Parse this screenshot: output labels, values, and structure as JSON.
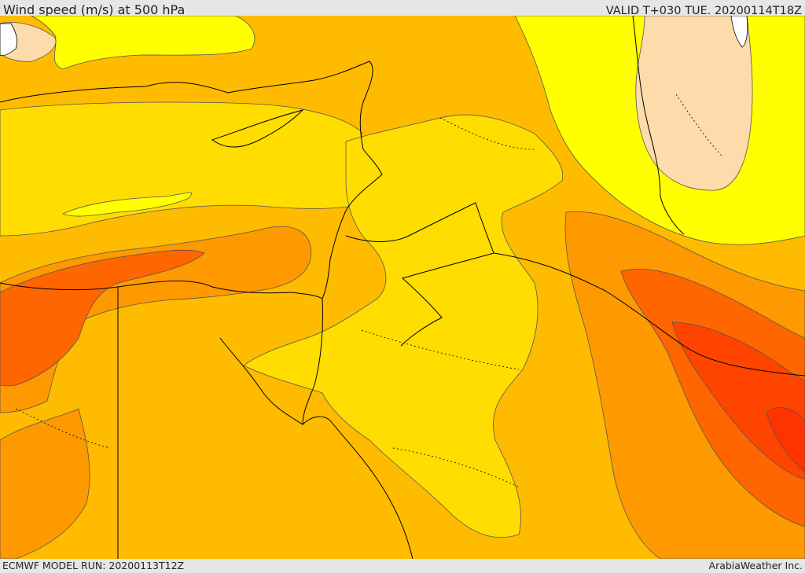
{
  "header": {
    "title": "Wind speed (m/s) at 500 hPa",
    "valid_time": "VALID T+030 TUE. 20200114T18Z"
  },
  "footer": {
    "model_run": "ECMWF MODEL RUN: 20200113T12Z",
    "credit": "ArabiaWeather Inc."
  },
  "colors": {
    "level_pale": "#fddbaa",
    "level_yellow": "#ffff00",
    "level_gold": "#ffdd00",
    "level_amber": "#ffbb00",
    "level_orange": "#ff9900",
    "level_dark_orange": "#ff6600",
    "level_red_orange": "#ff4400",
    "coastline": "#000000",
    "land_white": "#ffffff"
  }
}
